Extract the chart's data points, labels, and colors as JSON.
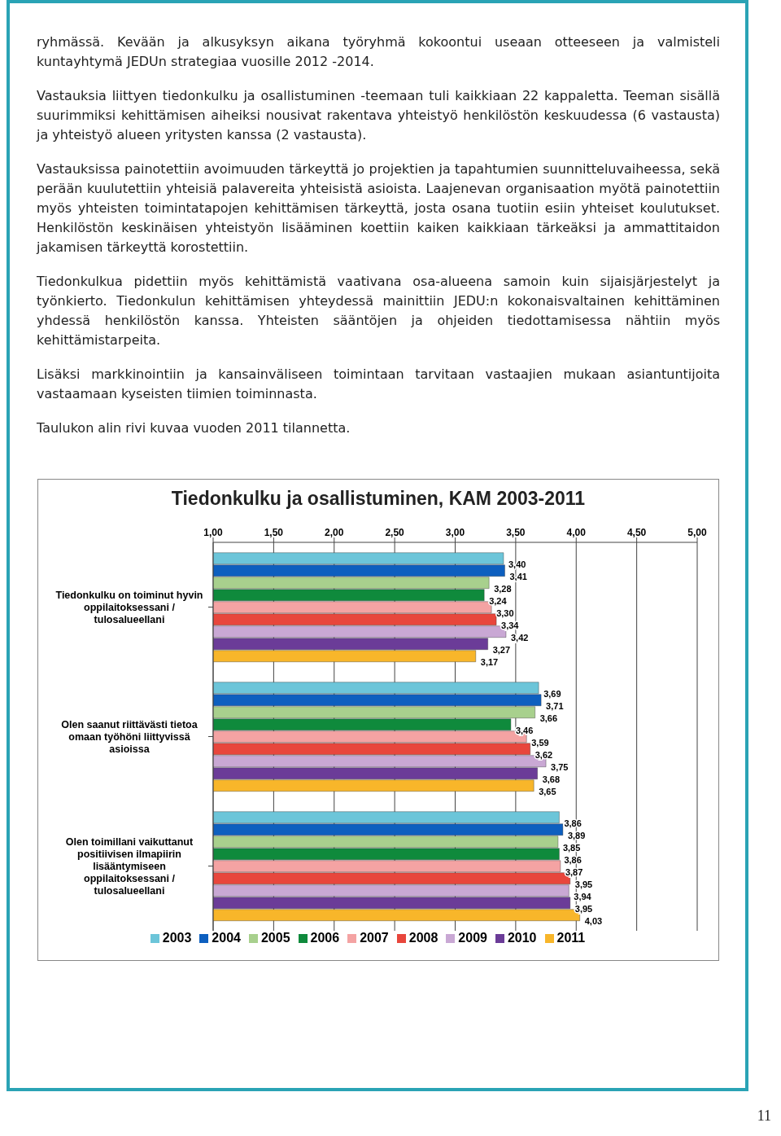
{
  "chart_data": {
    "type": "bar",
    "orientation": "horizontal",
    "title": "Tiedonkulku ja osallistuminen, KAM 2003-2011",
    "annotations": [
      "ryhmässä. Kevään ja alkusyksyn aikana työryhmä kokoontui useaan otteeseen ja valmisteli kuntayhtymä JEDUn strategiaa vuosille 2012 -2014.",
      "Vastauksia liittyen tiedonkulku ja osallistuminen -teemaan tuli kaikkiaan 22 kappaletta. Teeman sisällä suurimmiksi kehittämisen aiheiksi nousivat rakentava yhteistyö henkilöstön keskuudessa (6 vastausta) ja yhteistyö alueen yritysten kanssa (2 vastausta).",
      "Vastauksissa painotettiin avoimuuden tärkeyttä jo projektien ja tapahtumien suunnitteluvaiheessa, sekä perään kuulutettiin yhteisiä palavereita yhteisistä asioista. Laajenevan organisaation myötä painotettiin myös yhteisten toimintatapojen kehittämisen tärkeyttä, josta osana tuotiin esiin yhteiset koulutukset. Henkilöstön keskinäisen yhteistyön lisääminen koettiin kaiken kaikkiaan tärkeäksi ja ammattitaidon jakamisen tärkeyttä korostettiin.",
      "Tiedonkulkua pidettiin myös kehittämistä vaativana osa-alueena samoin kuin sijaisjärjestelyt ja työnkierto. Tiedonkulun kehittämisen yhteydessä mainittiin JEDU:n kokonaisvaltainen kehittäminen yhdessä henkilöstön kanssa. Yhteisten sääntöjen ja ohjeiden tiedottamisessa nähtiin myös kehittämistarpeita.",
      "Lisäksi markkinointiin ja kansainväliseen toimintaan tarvitaan vastaajien mukaan asiantuntijoita vastaamaan kyseisten tiimien toiminnasta.",
      "Taulukon alin rivi kuvaa vuoden 2011 tilannetta.",
      "11"
    ],
    "categories": [
      "Tiedonkulku on toiminut hyvin oppilaitoksessani / tulosalueellani",
      "Olen saanut riittävästi tietoa omaan työhöni liittyvissä asioissa",
      "Olen toimillani vaikuttanut positiivisen ilmapiirin lisääntymiseen oppilaitoksessani / tulosalueellani"
    ],
    "series": [
      {
        "name": "2003",
        "color": "#6cc5d9",
        "values": [
          3.4,
          3.69,
          3.86
        ],
        "value_labels": [
          "3,40",
          "3,69",
          "3,86"
        ]
      },
      {
        "name": "2004",
        "color": "#0d5fbf",
        "values": [
          3.41,
          3.71,
          3.89
        ],
        "value_labels": [
          "3,41",
          "3,71",
          "3,89"
        ]
      },
      {
        "name": "2005",
        "color": "#a8d08d",
        "values": [
          3.28,
          3.66,
          3.85
        ],
        "value_labels": [
          "3,28",
          "3,66",
          "3,85"
        ]
      },
      {
        "name": "2006",
        "color": "#0f8a3c",
        "values": [
          3.24,
          3.46,
          3.86
        ],
        "value_labels": [
          "3,24",
          "3,46",
          "3,86"
        ]
      },
      {
        "name": "2007",
        "color": "#f4a3a3",
        "values": [
          3.3,
          3.59,
          3.87
        ],
        "value_labels": [
          "3,30",
          "3,59",
          "3,87"
        ]
      },
      {
        "name": "2008",
        "color": "#e8463c",
        "values": [
          3.34,
          3.62,
          3.95
        ],
        "value_labels": [
          "3,34",
          "3,62",
          "3,95"
        ]
      },
      {
        "name": "2009",
        "color": "#c9a8d4",
        "values": [
          3.42,
          3.75,
          3.94
        ],
        "value_labels": [
          "3,42",
          "3,75",
          "3,94"
        ]
      },
      {
        "name": "2010",
        "color": "#6b3c98",
        "values": [
          3.27,
          3.68,
          3.95
        ],
        "value_labels": [
          "3,27",
          "3,68",
          "3,95"
        ]
      },
      {
        "name": "2011",
        "color": "#f8b62a",
        "values": [
          3.17,
          3.65,
          4.03
        ],
        "value_labels": [
          "3,17",
          "3,65",
          "4,03"
        ]
      }
    ],
    "xlim": [
      1,
      5
    ],
    "xticks": [
      {
        "value": 1,
        "label": "1,00"
      },
      {
        "value": 1.5,
        "label": "1,50"
      },
      {
        "value": 2,
        "label": "2,00"
      },
      {
        "value": 2.5,
        "label": "2,50"
      },
      {
        "value": 3,
        "label": "3,00"
      },
      {
        "value": 3.5,
        "label": "3,50"
      },
      {
        "value": 4,
        "label": "4,00"
      },
      {
        "value": 4.5,
        "label": "4,50"
      },
      {
        "value": 5,
        "label": "5,00"
      }
    ],
    "grid": "x",
    "legend": "bottom"
  }
}
